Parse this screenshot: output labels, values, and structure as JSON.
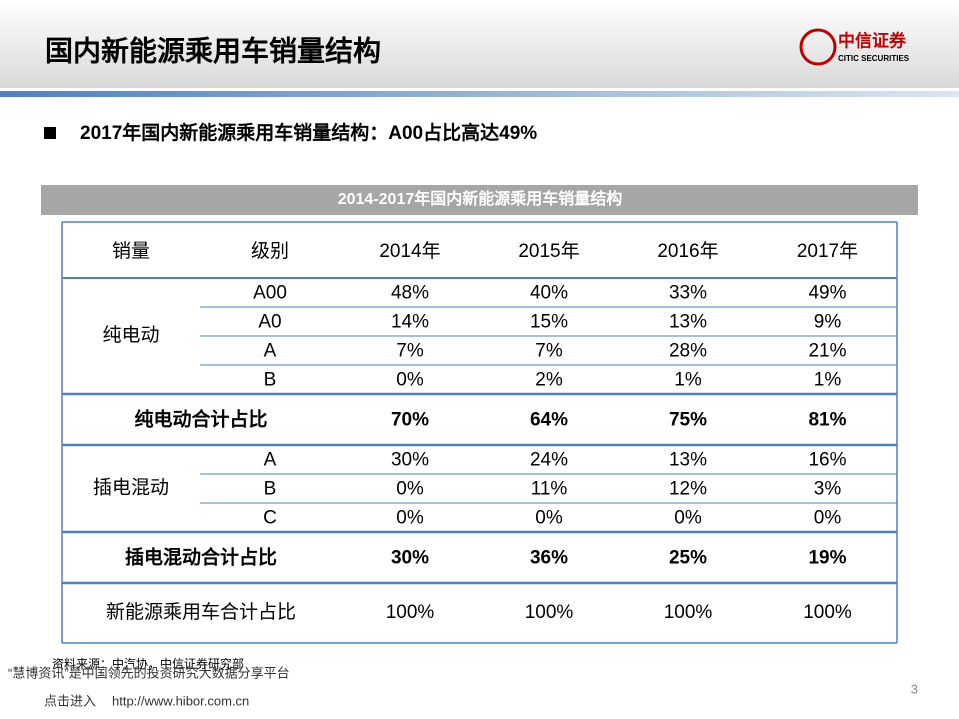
{
  "header": {
    "title": "国内新能源乘用车销量结构",
    "logo_cn": "中信证券",
    "logo_en": "CITIC SECURITIES"
  },
  "bullet": "2017年国内新能源乘用车销量结构：A00占比高达49%",
  "table": {
    "caption": "2014-2017年国内新能源乘用车销量结构",
    "header": [
      "销量",
      "级别",
      "2014年",
      "2015年",
      "2016年",
      "2017年"
    ],
    "groups": [
      {
        "name": "纯电动",
        "rows": [
          [
            "A00",
            "48%",
            "40%",
            "33%",
            "49%"
          ],
          [
            "A0",
            "14%",
            "15%",
            "13%",
            "9%"
          ],
          [
            "A",
            "7%",
            "7%",
            "28%",
            "21%"
          ],
          [
            "B",
            "0%",
            "2%",
            "1%",
            "1%"
          ]
        ],
        "total": [
          "纯电动合计占比",
          "70%",
          "64%",
          "75%",
          "81%"
        ]
      },
      {
        "name": "插电混动",
        "rows": [
          [
            "A",
            "30%",
            "24%",
            "13%",
            "16%"
          ],
          [
            "B",
            "0%",
            "11%",
            "12%",
            "3%"
          ],
          [
            "C",
            "0%",
            "0%",
            "0%",
            "0%"
          ]
        ],
        "total": [
          "插电混动合计占比",
          "30%",
          "36%",
          "25%",
          "19%"
        ]
      }
    ],
    "grand_total": [
      "新能源乘用车合计占比",
      "100%",
      "100%",
      "100%",
      "100%"
    ]
  },
  "footer": {
    "source": "资料来源：中汽协，中信证券研究部",
    "watermark": "“慧博资讯”是中国领先的投资研究大数据分享平台",
    "link_prefix": "点击进入",
    "link": "http://www.hibor.com.cn",
    "page": "3"
  }
}
